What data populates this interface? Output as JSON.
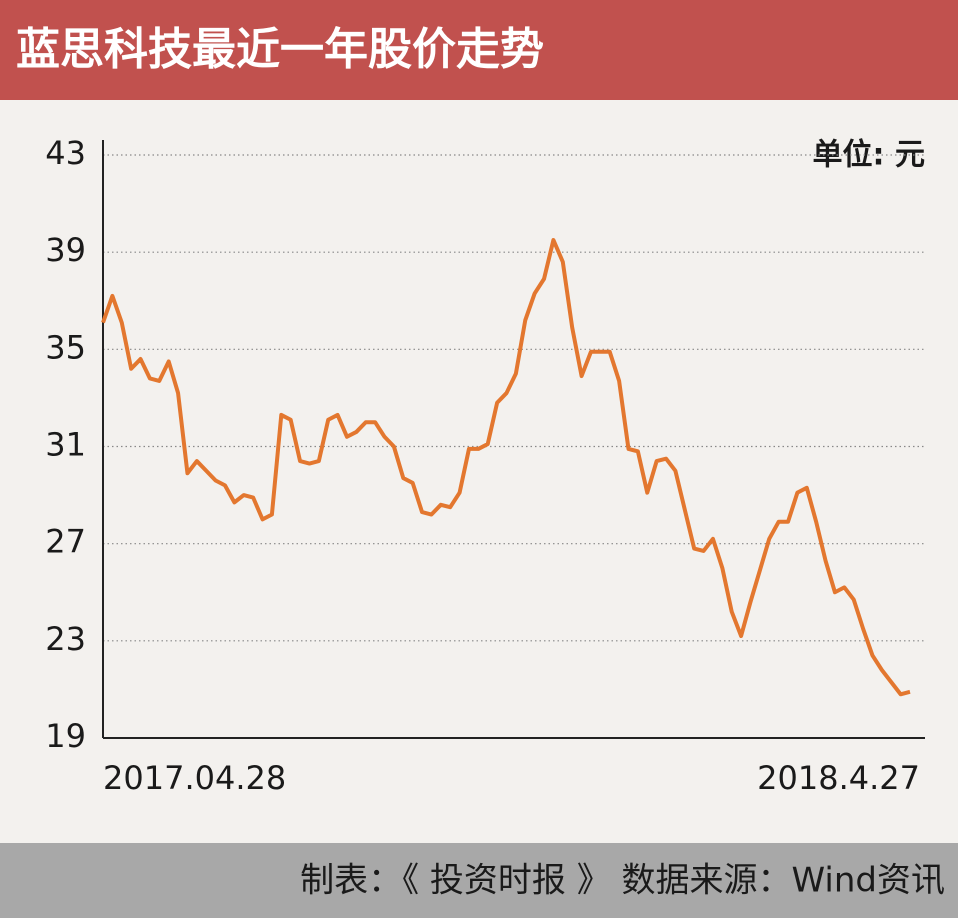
{
  "chart_data": {
    "type": "line",
    "title": "蓝思科技最近一年股价走势",
    "unit_label": "单位: 元",
    "categories": [
      "2017.04.28",
      null,
      null,
      null,
      null,
      null,
      null,
      null,
      null,
      null,
      null,
      null,
      null,
      null,
      null,
      null,
      null,
      null,
      null,
      null,
      null,
      null,
      null,
      null,
      null,
      null,
      null,
      null,
      null,
      null,
      null,
      null,
      null,
      null,
      null,
      null,
      null,
      null,
      null,
      null,
      null,
      null,
      null,
      null,
      null,
      null,
      null,
      null,
      null,
      null,
      null,
      null,
      null,
      null,
      null,
      null,
      null,
      null,
      null,
      null,
      null,
      null,
      null,
      null,
      null,
      null,
      null,
      null,
      null,
      null,
      null,
      null,
      null,
      null,
      null,
      null,
      null,
      null,
      null,
      null,
      null,
      null,
      null,
      null,
      null,
      null,
      "2018.4.27"
    ],
    "values": [
      36.1,
      37.2,
      36.1,
      34.2,
      34.6,
      33.8,
      33.7,
      34.5,
      33.2,
      29.9,
      30.4,
      30.0,
      29.6,
      29.4,
      28.7,
      29.0,
      28.9,
      28.0,
      28.2,
      32.3,
      32.1,
      30.4,
      30.3,
      30.4,
      32.1,
      32.3,
      31.4,
      31.6,
      32.0,
      32.0,
      31.4,
      31.0,
      29.7,
      29.5,
      28.3,
      28.2,
      28.6,
      28.5,
      29.1,
      30.9,
      30.9,
      31.1,
      32.8,
      33.2,
      34.0,
      36.2,
      37.3,
      37.9,
      39.5,
      38.6,
      35.9,
      33.9,
      34.9,
      34.9,
      34.9,
      33.7,
      30.9,
      30.8,
      29.1,
      30.4,
      30.5,
      30.0,
      28.4,
      26.8,
      26.7,
      27.2,
      26.0,
      24.2,
      23.2,
      24.6,
      25.9,
      27.2,
      27.9,
      27.9,
      29.1,
      29.3,
      27.9,
      26.3,
      25.0,
      25.2,
      24.7,
      23.5,
      22.4,
      21.8,
      21.3,
      20.8,
      20.9
    ],
    "color": "#e3772f",
    "ylim": [
      19,
      43
    ],
    "yticks": [
      19,
      23,
      27,
      31,
      35,
      39,
      43
    ],
    "grid": true
  },
  "footer": "制表：《 投资时报 》 数据来源：Wind资讯"
}
